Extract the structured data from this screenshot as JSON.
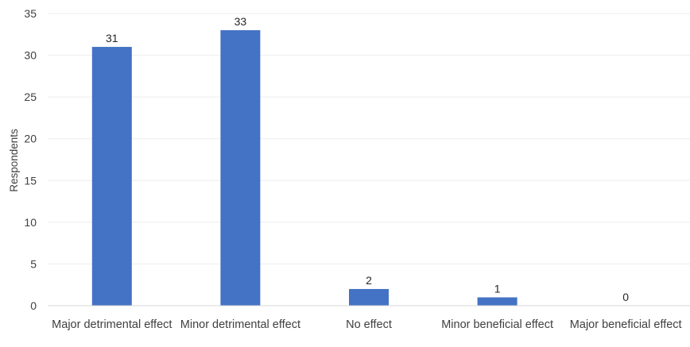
{
  "chart_data": {
    "type": "bar",
    "categories": [
      "Major detrimental effect",
      "Minor detrimental effect",
      "No effect",
      "Minor beneficial effect",
      "Major beneficial effect"
    ],
    "values": [
      31,
      33,
      2,
      1,
      0
    ],
    "data_labels": [
      "31",
      "33",
      "2",
      "1",
      "0"
    ],
    "title": "",
    "xlabel": "",
    "ylabel": "Respondents",
    "ylim": [
      0,
      35
    ],
    "yticks": [
      0,
      5,
      10,
      15,
      20,
      25,
      30,
      35
    ],
    "ytick_labels": [
      "0",
      "5",
      "10",
      "15",
      "20",
      "25",
      "30",
      "35"
    ],
    "grid": true,
    "legend": "none",
    "bar_color": "#4472c4"
  }
}
